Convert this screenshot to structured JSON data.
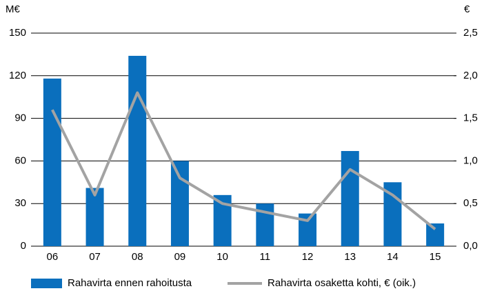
{
  "chart_data": {
    "type": "bar",
    "y_label": "M€",
    "y2_label": "€",
    "categories": [
      "06",
      "07",
      "08",
      "09",
      "10",
      "11",
      "12",
      "13",
      "14",
      "15"
    ],
    "series": [
      {
        "name": "Rahavirta ennen rahoitusta",
        "type": "bar",
        "color": "#0a6fbd",
        "values": [
          118,
          41,
          134,
          60,
          36,
          30,
          23,
          67,
          45,
          16
        ]
      },
      {
        "name": "Rahavirta osaketta kohti, € (oik.)",
        "type": "line",
        "axis": "y2",
        "color": "#a3a3a3",
        "values": [
          1.6,
          0.6,
          1.8,
          0.8,
          0.5,
          0.4,
          0.3,
          0.9,
          0.6,
          0.2
        ]
      }
    ],
    "ylim": [
      0,
      150
    ],
    "yticks": [
      0,
      30,
      60,
      90,
      120,
      150
    ],
    "y2lim": [
      0,
      2.5
    ],
    "y2ticks": [
      {
        "value": 0,
        "label": "0,0"
      },
      {
        "value": 0.5,
        "label": "0,5"
      },
      {
        "value": 1,
        "label": "1,0"
      },
      {
        "value": 1.5,
        "label": "1,5"
      },
      {
        "value": 2,
        "label": "2,0"
      },
      {
        "value": 2.5,
        "label": "2,5"
      }
    ],
    "grid": true
  }
}
